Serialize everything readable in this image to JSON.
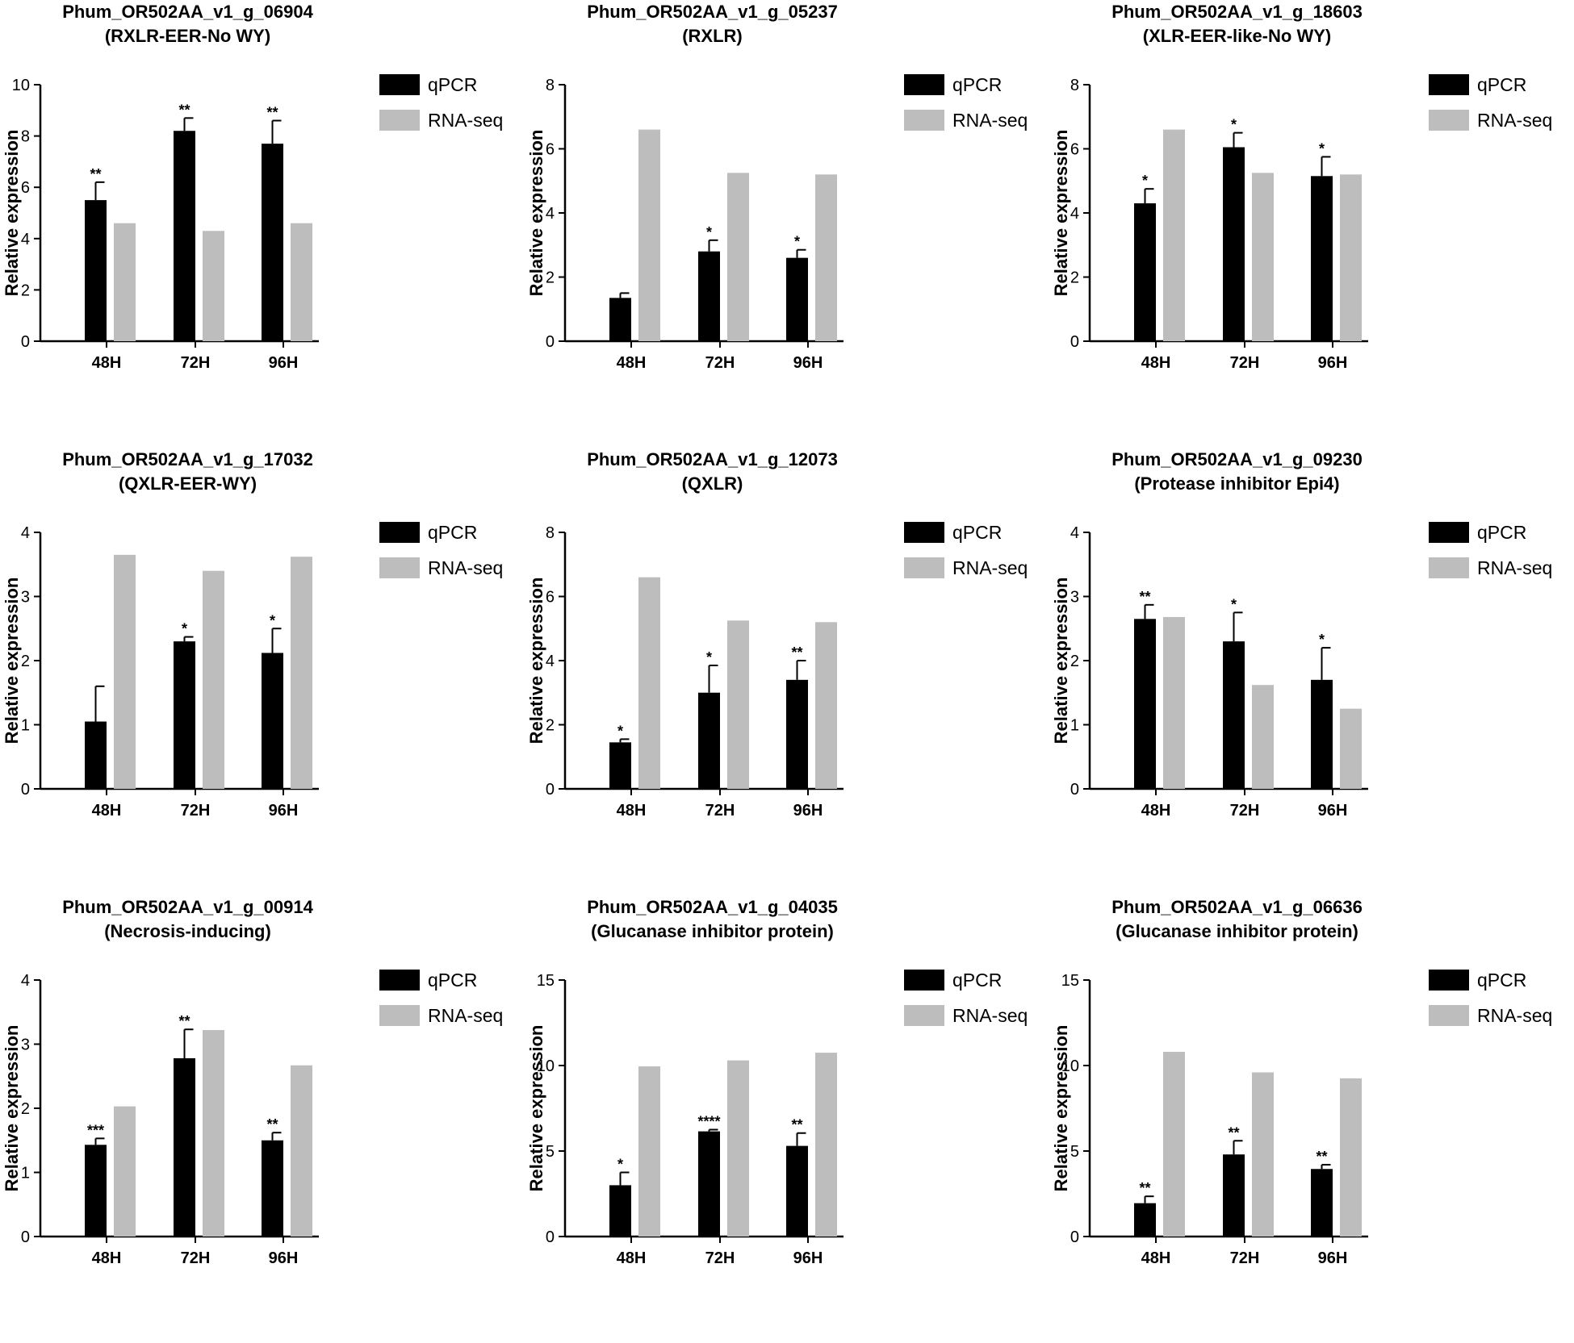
{
  "colors": {
    "qpcr": "#000000",
    "rnaseq": "#bdbdbd",
    "axis": "#000000"
  },
  "chart_data": [
    {
      "type": "bar",
      "title": "Phum_OR502AA_v1_g_06904",
      "subtitle": "(RXLR-EER-No WY)",
      "ylabel": "Relative expression",
      "xlabel": "",
      "ylim": [
        0,
        10
      ],
      "yticks": [
        "0",
        "2",
        "4",
        "6",
        "8",
        "10"
      ],
      "categories": [
        "48H",
        "72H",
        "96H"
      ],
      "legend": "right",
      "series": [
        {
          "name": "qPCR",
          "values": [
            5.5,
            8.2,
            7.7
          ],
          "errors": [
            0.7,
            0.5,
            0.9
          ],
          "significance": [
            "**",
            "**",
            "**"
          ]
        },
        {
          "name": "RNA-seq",
          "values": [
            4.6,
            4.3,
            4.6
          ]
        }
      ]
    },
    {
      "type": "bar",
      "title": "Phum_OR502AA_v1_g_05237",
      "subtitle": "(RXLR)",
      "ylabel": "Relative expression",
      "xlabel": "",
      "ylim": [
        0,
        8
      ],
      "yticks": [
        "0",
        "2",
        "4",
        "6",
        "8"
      ],
      "categories": [
        "48H",
        "72H",
        "96H"
      ],
      "legend": "right",
      "series": [
        {
          "name": "qPCR",
          "values": [
            1.35,
            2.8,
            2.6
          ],
          "errors": [
            0.15,
            0.35,
            0.25
          ],
          "significance": [
            "",
            "*",
            "*"
          ]
        },
        {
          "name": "RNA-seq",
          "values": [
            6.6,
            5.25,
            5.2
          ]
        }
      ]
    },
    {
      "type": "bar",
      "title": "Phum_OR502AA_v1_g_18603",
      "subtitle": "(XLR-EER-like-No WY)",
      "ylabel": "Relative expression",
      "xlabel": "",
      "ylim": [
        0,
        8
      ],
      "yticks": [
        "0",
        "2",
        "4",
        "6",
        "8"
      ],
      "categories": [
        "48H",
        "72H",
        "96H"
      ],
      "legend": "right",
      "series": [
        {
          "name": "qPCR",
          "values": [
            4.3,
            6.05,
            5.15
          ],
          "errors": [
            0.45,
            0.45,
            0.6
          ],
          "significance": [
            "*",
            "*",
            "*"
          ]
        },
        {
          "name": "RNA-seq",
          "values": [
            6.6,
            5.25,
            5.2
          ]
        }
      ]
    },
    {
      "type": "bar",
      "title": "Phum_OR502AA_v1_g_17032",
      "subtitle": "(QXLR-EER-WY)",
      "ylabel": "Relative expression",
      "xlabel": "",
      "ylim": [
        0,
        4
      ],
      "yticks": [
        "0",
        "1",
        "2",
        "3",
        "4"
      ],
      "categories": [
        "48H",
        "72H",
        "96H"
      ],
      "legend": "right",
      "series": [
        {
          "name": "qPCR",
          "values": [
            1.05,
            2.3,
            2.12
          ],
          "errors": [
            0.55,
            0.07,
            0.38
          ],
          "significance": [
            "",
            "*",
            "*"
          ]
        },
        {
          "name": "RNA-seq",
          "values": [
            3.65,
            3.4,
            3.62
          ]
        }
      ]
    },
    {
      "type": "bar",
      "title": "Phum_OR502AA_v1_g_12073",
      "subtitle": "(QXLR)",
      "ylabel": "Relative expression",
      "xlabel": "",
      "ylim": [
        0,
        8
      ],
      "yticks": [
        "0",
        "2",
        "4",
        "6",
        "8"
      ],
      "categories": [
        "48H",
        "72H",
        "96H"
      ],
      "legend": "right",
      "series": [
        {
          "name": "qPCR",
          "values": [
            1.45,
            3.0,
            3.4
          ],
          "errors": [
            0.1,
            0.85,
            0.6
          ],
          "significance": [
            "*",
            "*",
            "**"
          ]
        },
        {
          "name": "RNA-seq",
          "values": [
            6.6,
            5.25,
            5.2
          ]
        }
      ]
    },
    {
      "type": "bar",
      "title": "Phum_OR502AA_v1_g_09230",
      "subtitle": "(Protease inhibitor Epi4)",
      "ylabel": "Relative expression",
      "xlabel": "",
      "ylim": [
        0,
        4
      ],
      "yticks": [
        "0",
        "1",
        "2",
        "3",
        "4"
      ],
      "categories": [
        "48H",
        "72H",
        "96H"
      ],
      "legend": "right",
      "series": [
        {
          "name": "qPCR",
          "values": [
            2.65,
            2.3,
            1.7
          ],
          "errors": [
            0.22,
            0.45,
            0.5
          ],
          "significance": [
            "**",
            "*",
            "*"
          ]
        },
        {
          "name": "RNA-seq",
          "values": [
            2.68,
            1.62,
            1.25
          ]
        }
      ]
    },
    {
      "type": "bar",
      "title": "Phum_OR502AA_v1_g_00914",
      "subtitle": "(Necrosis-inducing)",
      "ylabel": "Relative expression",
      "xlabel": "",
      "ylim": [
        0,
        4
      ],
      "yticks": [
        "0",
        "1",
        "2",
        "3",
        "4"
      ],
      "categories": [
        "48H",
        "72H",
        "96H"
      ],
      "legend": "right",
      "series": [
        {
          "name": "qPCR",
          "values": [
            1.43,
            2.78,
            1.5
          ],
          "errors": [
            0.1,
            0.45,
            0.12
          ],
          "significance": [
            "***",
            "**",
            "**"
          ]
        },
        {
          "name": "RNA-seq",
          "values": [
            2.03,
            3.22,
            2.67
          ]
        }
      ]
    },
    {
      "type": "bar",
      "title": "Phum_OR502AA_v1_g_04035",
      "subtitle": "(Glucanase inhibitor protein)",
      "ylabel": "Relative expression",
      "xlabel": "",
      "ylim": [
        0,
        15
      ],
      "yticks": [
        "0",
        "5",
        "10",
        "15"
      ],
      "categories": [
        "48H",
        "72H",
        "96H"
      ],
      "legend": "right",
      "series": [
        {
          "name": "qPCR",
          "values": [
            3.0,
            6.15,
            5.3
          ],
          "errors": [
            0.75,
            0.1,
            0.75
          ],
          "significance": [
            "*",
            "****",
            "**"
          ]
        },
        {
          "name": "RNA-seq",
          "values": [
            9.95,
            10.3,
            10.75
          ]
        }
      ]
    },
    {
      "type": "bar",
      "title": "Phum_OR502AA_v1_g_06636",
      "subtitle": "(Glucanase inhibitor protein)",
      "ylabel": "Relative expression",
      "xlabel": "",
      "ylim": [
        0,
        15
      ],
      "yticks": [
        "0",
        "5",
        "10",
        "15"
      ],
      "categories": [
        "48H",
        "72H",
        "96H"
      ],
      "legend": "right",
      "series": [
        {
          "name": "qPCR",
          "values": [
            1.95,
            4.8,
            3.95
          ],
          "errors": [
            0.4,
            0.8,
            0.25
          ],
          "significance": [
            "**",
            "**",
            "**"
          ]
        },
        {
          "name": "RNA-seq",
          "values": [
            10.8,
            9.6,
            9.25
          ]
        }
      ]
    }
  ]
}
